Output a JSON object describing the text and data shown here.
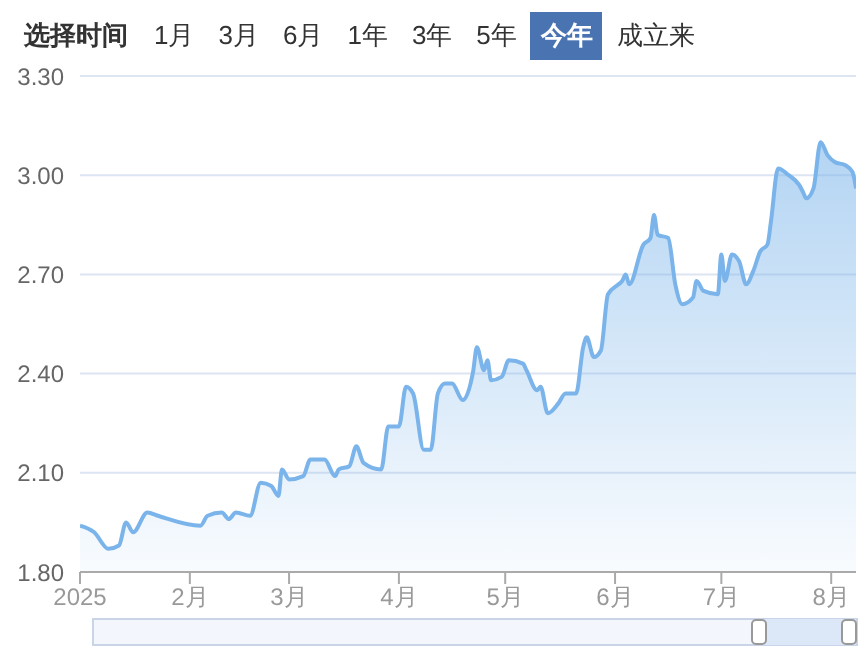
{
  "chart_data": {
    "type": "area",
    "color": "#7ab4ea",
    "annotations": [
      "选择时间",
      "1月",
      "3月",
      "6月",
      "1年",
      "3年",
      "5年",
      "今年",
      "成立来"
    ],
    "x": [
      "2025-01-01",
      "2025-01-05",
      "2025-01-09",
      "2025-01-12",
      "2025-01-14",
      "2025-01-16",
      "2025-01-20",
      "2025-01-23",
      "2025-02-04",
      "2025-02-06",
      "2025-02-10",
      "2025-02-12",
      "2025-02-14",
      "2025-02-18",
      "2025-02-21",
      "2025-02-24",
      "2025-02-26",
      "2025-02-27",
      "2025-03-01",
      "2025-03-05",
      "2025-03-07",
      "2025-03-11",
      "2025-03-14",
      "2025-03-15",
      "2025-03-18",
      "2025-03-20",
      "2025-03-22",
      "2025-03-27",
      "2025-03-29",
      "2025-04-01",
      "2025-04-03",
      "2025-04-05",
      "2025-04-08",
      "2025-04-10",
      "2025-04-12",
      "2025-04-14",
      "2025-04-16",
      "2025-04-19",
      "2025-04-22",
      "2025-04-23",
      "2025-04-25",
      "2025-04-26",
      "2025-04-27",
      "2025-04-30",
      "2025-05-02",
      "2025-05-06",
      "2025-05-07",
      "2025-05-10",
      "2025-05-11",
      "2025-05-13",
      "2025-05-16",
      "2025-05-18",
      "2025-05-21",
      "2025-05-23",
      "2025-05-24",
      "2025-05-26",
      "2025-05-28",
      "2025-05-30",
      "2025-06-02",
      "2025-06-03",
      "2025-06-04",
      "2025-06-05",
      "2025-06-09",
      "2025-06-11",
      "2025-06-12",
      "2025-06-13",
      "2025-06-16",
      "2025-06-18",
      "2025-06-20",
      "2025-06-23",
      "2025-06-24",
      "2025-06-26",
      "2025-06-30",
      "2025-07-01",
      "2025-07-02",
      "2025-07-04",
      "2025-07-06",
      "2025-07-08",
      "2025-07-10",
      "2025-07-12",
      "2025-07-14",
      "2025-07-15",
      "2025-07-17",
      "2025-07-20",
      "2025-07-23",
      "2025-07-24",
      "2025-07-25",
      "2025-07-27",
      "2025-07-29",
      "2025-07-31",
      "2025-08-02",
      "2025-08-05",
      "2025-08-07",
      "2025-08-08"
    ],
    "values": [
      1.94,
      1.92,
      1.87,
      1.88,
      1.95,
      1.92,
      1.98,
      1.97,
      1.94,
      1.97,
      1.98,
      1.96,
      1.98,
      1.97,
      2.07,
      2.06,
      2.03,
      2.11,
      2.08,
      2.09,
      2.14,
      2.14,
      2.09,
      2.11,
      2.12,
      2.18,
      2.13,
      2.11,
      2.24,
      2.24,
      2.36,
      2.34,
      2.17,
      2.17,
      2.34,
      2.37,
      2.37,
      2.32,
      2.41,
      2.48,
      2.41,
      2.44,
      2.38,
      2.39,
      2.44,
      2.43,
      2.41,
      2.35,
      2.36,
      2.28,
      2.31,
      2.34,
      2.34,
      2.48,
      2.51,
      2.45,
      2.47,
      2.64,
      2.67,
      2.68,
      2.7,
      2.67,
      2.79,
      2.81,
      2.88,
      2.82,
      2.81,
      2.67,
      2.61,
      2.63,
      2.68,
      2.65,
      2.64,
      2.76,
      2.68,
      2.76,
      2.74,
      2.67,
      2.71,
      2.77,
      2.79,
      2.86,
      3.02,
      3.0,
      2.97,
      2.95,
      2.93,
      2.96,
      3.1,
      3.06,
      3.04,
      3.03,
      3.01,
      2.96
    ],
    "xlim": [
      "2025-01-01",
      "2025-08-08"
    ],
    "xticks": [
      {
        "value": "2025-01-01",
        "label": "2025"
      },
      {
        "value": "2025-02-01",
        "label": "2月"
      },
      {
        "value": "2025-03-01",
        "label": "3月"
      },
      {
        "value": "2025-04-01",
        "label": "4月"
      },
      {
        "value": "2025-05-01",
        "label": "5月"
      },
      {
        "value": "2025-06-01",
        "label": "6月"
      },
      {
        "value": "2025-07-01",
        "label": "7月"
      },
      {
        "value": "2025-08-01",
        "label": "8月"
      }
    ],
    "ylim": [
      1.8,
      3.3
    ],
    "yticks": [
      {
        "value": 1.8,
        "label": "1.80"
      },
      {
        "value": 2.1,
        "label": "2.10"
      },
      {
        "value": 2.4,
        "label": "2.40"
      },
      {
        "value": 2.7,
        "label": "2.70"
      },
      {
        "value": 3.0,
        "label": "3.00"
      },
      {
        "value": 3.3,
        "label": "3.30"
      }
    ],
    "grid": "y",
    "legend": false
  }
}
